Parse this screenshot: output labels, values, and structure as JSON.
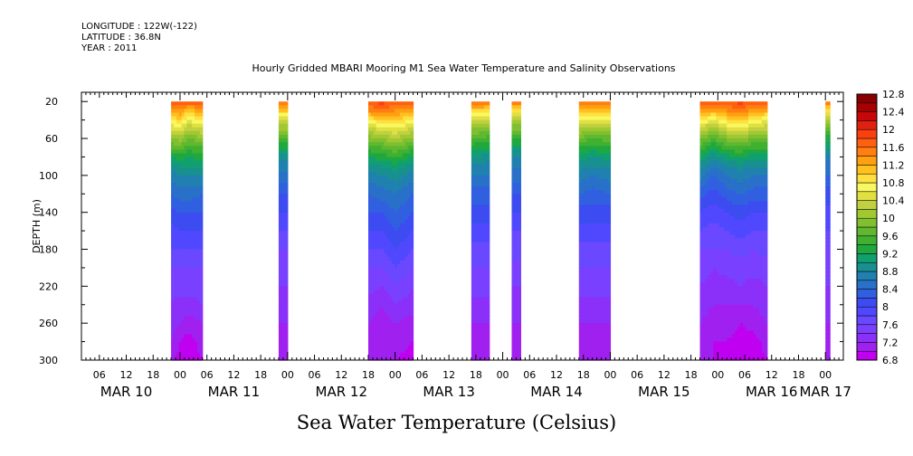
{
  "header": {
    "longitude": "LONGITUDE : 122W(-122)",
    "latitude": "LATITUDE : 36.8N",
    "year": "YEAR : 2011"
  },
  "chart_data": {
    "type": "heatmap",
    "title": "Hourly Gridded MBARI Mooring M1 Sea Water Temperature and Salinity Observations",
    "xlabel": "Sea Water Temperature (Celsius)",
    "ylabel": "DEPTH (m)",
    "x_unit": "hours since MAR 10 00:00, 2011",
    "xlim": [
      2,
      172
    ],
    "ylim": [
      300,
      10
    ],
    "y_reversed": true,
    "y_ticks": [
      20,
      60,
      100,
      140,
      180,
      220,
      260,
      300
    ],
    "x_hour_ticks": [
      {
        "hour": 6,
        "label": "06"
      },
      {
        "hour": 12,
        "label": "12"
      },
      {
        "hour": 18,
        "label": "18"
      },
      {
        "hour": 24,
        "label": "00"
      },
      {
        "hour": 30,
        "label": "06"
      },
      {
        "hour": 36,
        "label": "12"
      },
      {
        "hour": 42,
        "label": "18"
      },
      {
        "hour": 48,
        "label": "00"
      },
      {
        "hour": 54,
        "label": "06"
      },
      {
        "hour": 60,
        "label": "12"
      },
      {
        "hour": 66,
        "label": "18"
      },
      {
        "hour": 72,
        "label": "00"
      },
      {
        "hour": 78,
        "label": "06"
      },
      {
        "hour": 84,
        "label": "12"
      },
      {
        "hour": 90,
        "label": "18"
      },
      {
        "hour": 96,
        "label": "00"
      },
      {
        "hour": 102,
        "label": "06"
      },
      {
        "hour": 108,
        "label": "12"
      },
      {
        "hour": 114,
        "label": "18"
      },
      {
        "hour": 120,
        "label": "00"
      },
      {
        "hour": 126,
        "label": "06"
      },
      {
        "hour": 132,
        "label": "12"
      },
      {
        "hour": 138,
        "label": "18"
      },
      {
        "hour": 144,
        "label": "00"
      },
      {
        "hour": 150,
        "label": "06"
      },
      {
        "hour": 156,
        "label": "12"
      },
      {
        "hour": 162,
        "label": "18"
      },
      {
        "hour": 168,
        "label": "00"
      }
    ],
    "day_labels": [
      {
        "hour": 12,
        "label": "MAR 10"
      },
      {
        "hour": 36,
        "label": "MAR 11"
      },
      {
        "hour": 60,
        "label": "MAR 12"
      },
      {
        "hour": 84,
        "label": "MAR 13"
      },
      {
        "hour": 108,
        "label": "MAR 14"
      },
      {
        "hour": 132,
        "label": "MAR 15"
      },
      {
        "hour": 156,
        "label": "MAR 16"
      },
      {
        "hour": 168,
        "label": "MAR 17"
      }
    ],
    "colorbar": {
      "levels": [
        6.8,
        7.0,
        7.2,
        7.4,
        7.6,
        7.8,
        8.0,
        8.2,
        8.4,
        8.6,
        8.8,
        9.0,
        9.2,
        9.4,
        9.6,
        9.8,
        10.0,
        10.2,
        10.4,
        10.6,
        10.8,
        11.0,
        11.2,
        11.4,
        11.6,
        11.8,
        12.0,
        12.2,
        12.4,
        12.6,
        12.8
      ],
      "labels": [
        "6.8",
        "7.2",
        "7.6",
        "8",
        "8.4",
        "8.8",
        "9.2",
        "9.6",
        "10",
        "10.4",
        "10.8",
        "11.2",
        "11.6",
        "12",
        "12.4",
        "12.8"
      ],
      "colors": [
        "#c000f0",
        "#a020f0",
        "#8a30f8",
        "#7a40ff",
        "#6a48ff",
        "#5048ff",
        "#3c4cf0",
        "#3060e0",
        "#2870c8",
        "#2080b0",
        "#189090",
        "#10a070",
        "#20a840",
        "#40b030",
        "#60b830",
        "#80c030",
        "#a0c830",
        "#c0d040",
        "#e0e040",
        "#f8f860",
        "#ffe040",
        "#ffc020",
        "#ffa010",
        "#ff8010",
        "#ff6010",
        "#f84010",
        "#e02010",
        "#c80808",
        "#a80000",
        "#880000"
      ]
    },
    "depths": [
      20,
      30,
      40,
      50,
      60,
      70,
      80,
      90,
      100,
      120,
      140,
      160,
      180,
      200,
      220,
      240,
      260,
      280,
      300
    ],
    "data_segments": [
      {
        "start_hour": 22,
        "end_hour": 29,
        "profiles": [
          {
            "hour": 22,
            "temps": [
              11.8,
              11.2,
              10.8,
              10.4,
              10.0,
              9.6,
              9.2,
              8.9,
              8.7,
              8.4,
              8.1,
              7.9,
              7.8,
              7.6,
              7.5,
              7.4,
              7.3,
              7.2,
              7.1
            ]
          },
          {
            "hour": 24,
            "temps": [
              11.8,
              11.4,
              11.0,
              10.5,
              10.1,
              9.7,
              9.3,
              9.0,
              8.8,
              8.5,
              8.2,
              8.0,
              7.8,
              7.6,
              7.5,
              7.3,
              7.2,
              7.0,
              6.9
            ]
          },
          {
            "hour": 26,
            "temps": [
              11.8,
              11.0,
              10.6,
              10.2,
              9.8,
              9.5,
              9.2,
              9.0,
              8.8,
              8.5,
              8.2,
              8.0,
              7.8,
              7.6,
              7.5,
              7.3,
              7.1,
              6.9,
              6.9
            ]
          },
          {
            "hour": 29,
            "temps": [
              11.8,
              11.4,
              10.9,
              10.4,
              10.0,
              9.6,
              9.3,
              9.0,
              8.8,
              8.4,
              8.2,
              8.0,
              7.8,
              7.6,
              7.5,
              7.4,
              7.2,
              7.1,
              7.0
            ]
          }
        ]
      },
      {
        "start_hour": 46,
        "end_hour": 48,
        "profiles": [
          {
            "hour": 46,
            "temps": [
              11.6,
              11.0,
              10.4,
              10.0,
              9.6,
              9.2,
              8.9,
              8.7,
              8.5,
              8.2,
              8.0,
              7.8,
              7.6,
              7.5,
              7.4,
              7.3,
              7.2,
              7.1,
              7.1
            ]
          },
          {
            "hour": 48,
            "temps": [
              11.6,
              11.0,
              10.4,
              10.0,
              9.6,
              9.2,
              8.9,
              8.7,
              8.5,
              8.2,
              8.0,
              7.8,
              7.6,
              7.5,
              7.4,
              7.3,
              7.2,
              7.1,
              7.1
            ]
          }
        ]
      },
      {
        "start_hour": 66,
        "end_hour": 76,
        "profiles": [
          {
            "hour": 66,
            "temps": [
              11.8,
              11.4,
              10.8,
              10.3,
              9.9,
              9.5,
              9.2,
              8.9,
              8.7,
              8.4,
              8.2,
              8.0,
              7.8,
              7.6,
              7.5,
              7.3,
              7.2,
              7.1,
              7.0
            ]
          },
          {
            "hour": 69,
            "temps": [
              11.9,
              11.5,
              11.0,
              10.5,
              10.0,
              9.6,
              9.3,
              9.0,
              8.8,
              8.5,
              8.2,
              8.0,
              7.8,
              7.6,
              7.4,
              7.2,
              7.1,
              7.0,
              7.0
            ]
          },
          {
            "hour": 72,
            "temps": [
              11.8,
              11.4,
              11.0,
              10.6,
              10.2,
              9.8,
              9.4,
              9.1,
              8.9,
              8.6,
              8.4,
              8.2,
              8.0,
              7.8,
              7.6,
              7.4,
              7.2,
              7.1,
              7.0
            ]
          },
          {
            "hour": 76,
            "temps": [
              11.8,
              11.3,
              10.8,
              10.3,
              9.9,
              9.5,
              9.2,
              8.9,
              8.7,
              8.4,
              8.2,
              8.0,
              7.8,
              7.6,
              7.4,
              7.3,
              7.1,
              7.0,
              6.9
            ]
          }
        ]
      },
      {
        "start_hour": 89,
        "end_hour": 93,
        "profiles": [
          {
            "hour": 89,
            "temps": [
              11.6,
              11.0,
              10.4,
              10.0,
              9.6,
              9.3,
              9.0,
              8.8,
              8.6,
              8.3,
              8.1,
              7.9,
              7.7,
              7.6,
              7.5,
              7.3,
              7.2,
              7.1,
              7.0
            ]
          },
          {
            "hour": 93,
            "temps": [
              11.6,
              10.9,
              10.3,
              9.9,
              9.5,
              9.2,
              8.9,
              8.7,
              8.6,
              8.3,
              8.1,
              7.9,
              7.7,
              7.6,
              7.5,
              7.3,
              7.2,
              7.1,
              7.0
            ]
          }
        ]
      },
      {
        "start_hour": 98,
        "end_hour": 100,
        "profiles": [
          {
            "hour": 98,
            "temps": [
              11.6,
              10.8,
              10.2,
              9.8,
              9.4,
              9.1,
              8.8,
              8.6,
              8.5,
              8.2,
              8.0,
              7.8,
              7.7,
              7.5,
              7.4,
              7.3,
              7.2,
              7.1,
              7.0
            ]
          },
          {
            "hour": 100,
            "temps": [
              11.6,
              10.8,
              10.2,
              9.8,
              9.4,
              9.1,
              8.8,
              8.6,
              8.5,
              8.2,
              8.0,
              7.8,
              7.7,
              7.5,
              7.4,
              7.3,
              7.2,
              7.1,
              7.0
            ]
          }
        ]
      },
      {
        "start_hour": 113,
        "end_hour": 120,
        "profiles": [
          {
            "hour": 113,
            "temps": [
              11.7,
              11.2,
              10.6,
              10.2,
              9.8,
              9.4,
              9.1,
              8.9,
              8.7,
              8.4,
              8.1,
              7.9,
              7.7,
              7.6,
              7.5,
              7.3,
              7.2,
              7.1,
              7.0
            ]
          },
          {
            "hour": 116,
            "temps": [
              11.6,
              11.0,
              10.5,
              10.0,
              9.6,
              9.3,
              9.0,
              8.8,
              8.6,
              8.3,
              8.1,
              7.9,
              7.7,
              7.6,
              7.5,
              7.3,
              7.2,
              7.1,
              7.0
            ]
          },
          {
            "hour": 120,
            "temps": [
              11.7,
              11.1,
              10.6,
              10.1,
              9.7,
              9.4,
              9.1,
              8.8,
              8.7,
              8.4,
              8.1,
              7.9,
              7.7,
              7.6,
              7.5,
              7.3,
              7.2,
              7.1,
              7.0
            ]
          }
        ]
      },
      {
        "start_hour": 140,
        "end_hour": 155,
        "profiles": [
          {
            "hour": 140,
            "temps": [
              11.8,
              11.4,
              10.8,
              10.3,
              9.9,
              9.5,
              9.2,
              8.9,
              8.7,
              8.3,
              8.0,
              7.8,
              7.6,
              7.5,
              7.4,
              7.3,
              7.2,
              7.1,
              7.1
            ]
          },
          {
            "hour": 143,
            "temps": [
              11.8,
              11.2,
              10.6,
              10.1,
              9.6,
              9.2,
              8.9,
              8.6,
              8.4,
              8.1,
              7.9,
              7.7,
              7.6,
              7.4,
              7.3,
              7.2,
              7.1,
              7.0,
              7.0
            ]
          },
          {
            "hour": 146,
            "temps": [
              11.8,
              11.4,
              10.9,
              10.4,
              9.9,
              9.5,
              9.1,
              8.8,
              8.6,
              8.3,
              8.0,
              7.8,
              7.6,
              7.5,
              7.3,
              7.2,
              7.1,
              7.0,
              6.9
            ]
          },
          {
            "hour": 149,
            "temps": [
              11.9,
              11.5,
              11.0,
              10.5,
              10.0,
              9.6,
              9.2,
              8.9,
              8.7,
              8.4,
              8.1,
              7.9,
              7.7,
              7.5,
              7.4,
              7.2,
              7.0,
              6.9,
              6.9
            ]
          },
          {
            "hour": 152,
            "temps": [
              11.8,
              11.3,
              10.8,
              10.3,
              9.8,
              9.4,
              9.1,
              8.8,
              8.6,
              8.3,
              8.0,
              7.8,
              7.6,
              7.5,
              7.3,
              7.2,
              7.1,
              6.9,
              6.9
            ]
          },
          {
            "hour": 155,
            "temps": [
              11.8,
              11.2,
              10.6,
              10.2,
              9.8,
              9.4,
              9.1,
              8.8,
              8.6,
              8.3,
              8.0,
              7.8,
              7.7,
              7.5,
              7.4,
              7.3,
              7.2,
              7.1,
              7.0
            ]
          }
        ]
      },
      {
        "start_hour": 168,
        "end_hour": 169,
        "profiles": [
          {
            "hour": 168,
            "temps": [
              11.6,
              10.8,
              10.2,
              9.7,
              9.3,
              9.0,
              8.7,
              8.5,
              8.4,
              8.1,
              7.9,
              7.8,
              7.6,
              7.5,
              7.4,
              7.3,
              7.2,
              7.1,
              7.0
            ]
          },
          {
            "hour": 169,
            "temps": [
              11.6,
              10.8,
              10.2,
              9.7,
              9.3,
              9.0,
              8.7,
              8.5,
              8.4,
              8.1,
              7.9,
              7.8,
              7.6,
              7.5,
              7.4,
              7.3,
              7.2,
              7.1,
              7.0
            ]
          }
        ]
      }
    ]
  }
}
